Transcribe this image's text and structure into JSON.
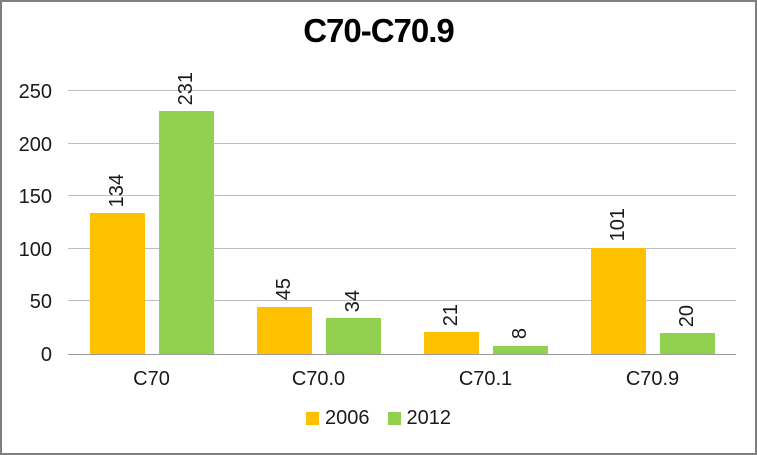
{
  "window": {
    "background": "#ffffff",
    "frame_border_color": "#7f7f7f"
  },
  "chart_data": {
    "type": "bar",
    "title": "C70-C70.9",
    "categories": [
      "C70",
      "C70.0",
      "C70.1",
      "C70.9"
    ],
    "series": [
      {
        "name": "2006",
        "color": "#FFC000",
        "values": [
          134,
          45,
          21,
          101
        ]
      },
      {
        "name": "2012",
        "color": "#92D050",
        "values": [
          231,
          34,
          8,
          20
        ]
      }
    ],
    "ylim": [
      0,
      250
    ],
    "yticks": [
      0,
      50,
      100,
      150,
      200,
      250
    ],
    "xlabel": "",
    "ylabel": "",
    "grid": "horizontal",
    "gridline_color": "#bfbfbf",
    "axis_line_color": "#9b9b9b",
    "label_color": "#1a1a1a",
    "data_labels": "rotated-90-above-bars",
    "legend_position": "bottom"
  }
}
